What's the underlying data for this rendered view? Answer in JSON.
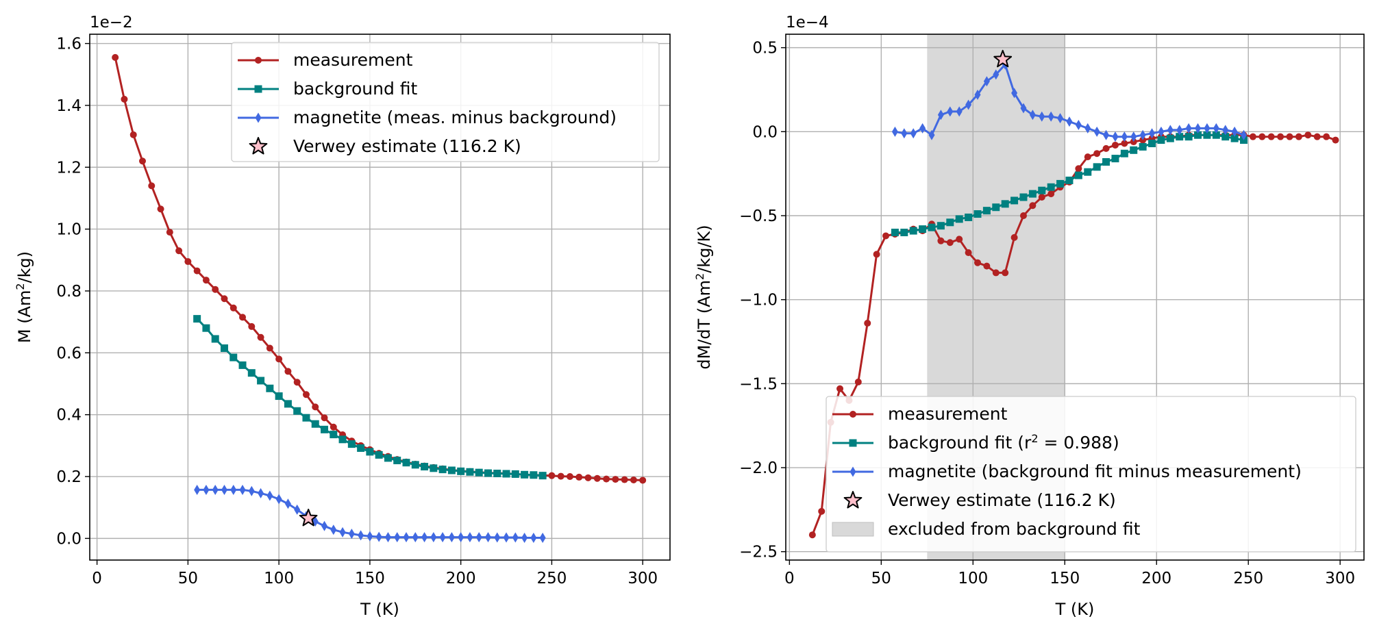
{
  "chart_data": [
    {
      "type": "line",
      "xlabel": "T (K)",
      "ylabel": "M (Am²/kg)",
      "ylabel_base": "M (Am",
      "ylabel_sup": "2",
      "ylabel_end": "/kg)",
      "sci_label": "1e−2",
      "xlim": [
        -4,
        315
      ],
      "ylim": [
        -0.07,
        1.63
      ],
      "xticks": [
        0,
        50,
        100,
        150,
        200,
        250,
        300
      ],
      "xtick_labels": [
        "0",
        "50",
        "100",
        "150",
        "200",
        "250",
        "300"
      ],
      "yticks": [
        0,
        0.2,
        0.4,
        0.6,
        0.8,
        1.0,
        1.2,
        1.4,
        1.6
      ],
      "ytick_labels": [
        "0.0",
        "0.2",
        "0.4",
        "0.6",
        "0.8",
        "1.0",
        "1.2",
        "1.4",
        "1.6"
      ],
      "grid": true,
      "legend_position": "top-right",
      "legend": [
        {
          "label": "measurement",
          "marker": "circle",
          "color": "#b22222"
        },
        {
          "label": "background fit",
          "marker": "square",
          "color": "#008080"
        },
        {
          "label": "magnetite (meas. minus background)",
          "marker": "diamond",
          "color": "#4169e1"
        },
        {
          "label": "Verwey estimate (116.2 K)",
          "marker": "star",
          "color": "#ffc0cb"
        }
      ],
      "series": [
        {
          "name": "measurement",
          "color": "#b22222",
          "marker": "circle",
          "x": [
            10,
            15,
            20,
            25,
            30,
            35,
            40,
            45,
            50,
            55,
            60,
            65,
            70,
            75,
            80,
            85,
            90,
            95,
            100,
            105,
            110,
            115,
            120,
            125,
            130,
            135,
            140,
            145,
            150,
            155,
            160,
            165,
            170,
            175,
            180,
            185,
            190,
            195,
            200,
            205,
            210,
            215,
            220,
            225,
            230,
            235,
            240,
            245,
            250,
            255,
            260,
            265,
            270,
            275,
            280,
            285,
            290,
            295,
            300
          ],
          "y": [
            1.555,
            1.42,
            1.305,
            1.22,
            1.14,
            1.065,
            0.99,
            0.93,
            0.895,
            0.865,
            0.835,
            0.805,
            0.775,
            0.745,
            0.715,
            0.685,
            0.65,
            0.615,
            0.58,
            0.54,
            0.505,
            0.465,
            0.425,
            0.39,
            0.36,
            0.335,
            0.315,
            0.3,
            0.287,
            0.275,
            0.265,
            0.255,
            0.247,
            0.24,
            0.234,
            0.229,
            0.225,
            0.221,
            0.218,
            0.216,
            0.214,
            0.212,
            0.211,
            0.21,
            0.208,
            0.206,
            0.205,
            0.204,
            0.203,
            0.201,
            0.2,
            0.198,
            0.196,
            0.194,
            0.192,
            0.191,
            0.19,
            0.189,
            0.188
          ]
        },
        {
          "name": "background fit",
          "color": "#008080",
          "marker": "square",
          "x": [
            55,
            60,
            65,
            70,
            75,
            80,
            85,
            90,
            95,
            100,
            105,
            110,
            115,
            120,
            125,
            130,
            135,
            140,
            145,
            150,
            155,
            160,
            165,
            170,
            175,
            180,
            185,
            190,
            195,
            200,
            205,
            210,
            215,
            220,
            225,
            230,
            235,
            240,
            245
          ],
          "y": [
            0.71,
            0.68,
            0.645,
            0.615,
            0.585,
            0.56,
            0.535,
            0.51,
            0.485,
            0.46,
            0.435,
            0.412,
            0.39,
            0.37,
            0.352,
            0.336,
            0.32,
            0.305,
            0.292,
            0.28,
            0.27,
            0.26,
            0.252,
            0.245,
            0.238,
            0.232,
            0.227,
            0.223,
            0.22,
            0.217,
            0.215,
            0.213,
            0.211,
            0.21,
            0.209,
            0.208,
            0.206,
            0.205,
            0.203
          ]
        },
        {
          "name": "magnetite (meas. minus background)",
          "color": "#4169e1",
          "marker": "diamond",
          "x": [
            55,
            60,
            65,
            70,
            75,
            80,
            85,
            90,
            95,
            100,
            105,
            110,
            115,
            120,
            125,
            130,
            135,
            140,
            145,
            150,
            155,
            160,
            165,
            170,
            175,
            180,
            185,
            190,
            195,
            200,
            205,
            210,
            215,
            220,
            225,
            230,
            235,
            240,
            245
          ],
          "y": [
            0.157,
            0.157,
            0.157,
            0.157,
            0.157,
            0.157,
            0.153,
            0.146,
            0.138,
            0.127,
            0.112,
            0.093,
            0.072,
            0.055,
            0.04,
            0.028,
            0.02,
            0.015,
            0.01,
            0.007,
            0.005,
            0.004,
            0.004,
            0.004,
            0.004,
            0.004,
            0.004,
            0.004,
            0.004,
            0.004,
            0.004,
            0.004,
            0.004,
            0.003,
            0.003,
            0.003,
            0.002,
            0.002,
            0.002
          ]
        }
      ],
      "star": {
        "name": "Verwey estimate (116.2 K)",
        "x": 116.2,
        "y": 0.065,
        "color": "#ffc0cb"
      }
    },
    {
      "type": "line",
      "xlabel": "T (K)",
      "ylabel": "dM/dT (Am²/kg/K)",
      "ylabel_base": "dM/dT (Am",
      "ylabel_sup": "2",
      "ylabel_end": "/kg/K)",
      "sci_label": "1e−4",
      "xlim": [
        -2,
        313
      ],
      "ylim": [
        -2.55,
        0.58
      ],
      "xticks": [
        0,
        50,
        100,
        150,
        200,
        250,
        300
      ],
      "xtick_labels": [
        "0",
        "50",
        "100",
        "150",
        "200",
        "250",
        "300"
      ],
      "yticks": [
        -2.5,
        -2.0,
        -1.5,
        -1.0,
        -0.5,
        0.0,
        0.5
      ],
      "ytick_labels": [
        "−2.5",
        "−2.0",
        "−1.5",
        "−1.0",
        "−0.5",
        "0.0",
        "0.5"
      ],
      "grid": true,
      "legend_position": "bottom-right",
      "excluded_range": [
        75,
        150
      ],
      "legend": [
        {
          "label": "measurement",
          "marker": "circle",
          "color": "#b22222"
        },
        {
          "label": "background fit (r² = 0.988)",
          "label_base": "background fit (r",
          "label_sup": "2",
          "label_end": " = 0.988)",
          "marker": "square",
          "color": "#008080"
        },
        {
          "label": "magnetite (background fit minus measurement)",
          "marker": "diamond",
          "color": "#4169e1"
        },
        {
          "label": "Verwey estimate (116.2 K)",
          "marker": "star",
          "color": "#ffc0cb"
        },
        {
          "label": "excluded from background fit",
          "marker": "patch",
          "color": "#d9d9d9"
        }
      ],
      "series": [
        {
          "name": "measurement",
          "color": "#b22222",
          "marker": "circle",
          "x": [
            12.5,
            17.5,
            22.5,
            27.5,
            32.5,
            37.5,
            42.5,
            47.5,
            52.5,
            57.5,
            62.5,
            67.5,
            72.5,
            77.5,
            82.5,
            87.5,
            92.5,
            97.5,
            102.5,
            107.5,
            112.5,
            117.5,
            122.5,
            127.5,
            132.5,
            137.5,
            142.5,
            147.5,
            152.5,
            157.5,
            162.5,
            167.5,
            172.5,
            177.5,
            182.5,
            187.5,
            192.5,
            197.5,
            202.5,
            207.5,
            212.5,
            217.5,
            222.5,
            227.5,
            232.5,
            237.5,
            242.5,
            247.5,
            252.5,
            257.5,
            262.5,
            267.5,
            272.5,
            277.5,
            282.5,
            287.5,
            292.5,
            297.5
          ],
          "y": [
            -2.4,
            -2.26,
            -1.73,
            -1.53,
            -1.6,
            -1.49,
            -1.14,
            -0.73,
            -0.62,
            -0.61,
            -0.6,
            -0.58,
            -0.59,
            -0.55,
            -0.65,
            -0.66,
            -0.64,
            -0.72,
            -0.78,
            -0.8,
            -0.84,
            -0.84,
            -0.63,
            -0.5,
            -0.44,
            -0.39,
            -0.37,
            -0.33,
            -0.3,
            -0.22,
            -0.15,
            -0.13,
            -0.1,
            -0.08,
            -0.07,
            -0.06,
            -0.05,
            -0.04,
            -0.03,
            -0.03,
            -0.03,
            -0.02,
            -0.02,
            -0.02,
            -0.02,
            -0.02,
            -0.02,
            -0.02,
            -0.03,
            -0.03,
            -0.03,
            -0.03,
            -0.03,
            -0.03,
            -0.02,
            -0.03,
            -0.03,
            -0.05
          ]
        },
        {
          "name": "background fit (r² = 0.988)",
          "color": "#008080",
          "marker": "square",
          "x": [
            57.5,
            62.5,
            67.5,
            72.5,
            77.5,
            82.5,
            87.5,
            92.5,
            97.5,
            102.5,
            107.5,
            112.5,
            117.5,
            122.5,
            127.5,
            132.5,
            137.5,
            142.5,
            147.5,
            152.5,
            157.5,
            162.5,
            167.5,
            172.5,
            177.5,
            182.5,
            187.5,
            192.5,
            197.5,
            202.5,
            207.5,
            212.5,
            217.5,
            222.5,
            227.5,
            232.5,
            237.5,
            242.5,
            247.5
          ],
          "y": [
            -0.6,
            -0.6,
            -0.59,
            -0.58,
            -0.57,
            -0.56,
            -0.54,
            -0.52,
            -0.51,
            -0.49,
            -0.47,
            -0.45,
            -0.43,
            -0.41,
            -0.39,
            -0.37,
            -0.35,
            -0.33,
            -0.31,
            -0.29,
            -0.26,
            -0.24,
            -0.21,
            -0.18,
            -0.16,
            -0.13,
            -0.11,
            -0.09,
            -0.07,
            -0.05,
            -0.04,
            -0.03,
            -0.03,
            -0.02,
            -0.02,
            -0.02,
            -0.03,
            -0.04,
            -0.05
          ]
        },
        {
          "name": "magnetite (background fit minus measurement)",
          "color": "#4169e1",
          "marker": "diamond",
          "x": [
            57.5,
            62.5,
            67.5,
            72.5,
            77.5,
            82.5,
            87.5,
            92.5,
            97.5,
            102.5,
            107.5,
            112.5,
            117.5,
            122.5,
            127.5,
            132.5,
            137.5,
            142.5,
            147.5,
            152.5,
            157.5,
            162.5,
            167.5,
            172.5,
            177.5,
            182.5,
            187.5,
            192.5,
            197.5,
            202.5,
            207.5,
            212.5,
            217.5,
            222.5,
            227.5,
            232.5,
            237.5,
            242.5,
            247.5
          ],
          "y": [
            0.0,
            -0.01,
            -0.01,
            0.02,
            -0.02,
            0.1,
            0.12,
            0.12,
            0.16,
            0.22,
            0.3,
            0.34,
            0.4,
            0.23,
            0.14,
            0.1,
            0.09,
            0.09,
            0.08,
            0.06,
            0.04,
            0.02,
            0.0,
            -0.02,
            -0.03,
            -0.03,
            -0.03,
            -0.02,
            -0.01,
            0.0,
            0.01,
            0.01,
            0.02,
            0.02,
            0.02,
            0.02,
            0.01,
            0.0,
            -0.02
          ]
        }
      ],
      "star": {
        "name": "Verwey estimate (116.2 K)",
        "x": 116.2,
        "y": 0.43,
        "color": "#ffc0cb"
      }
    }
  ]
}
